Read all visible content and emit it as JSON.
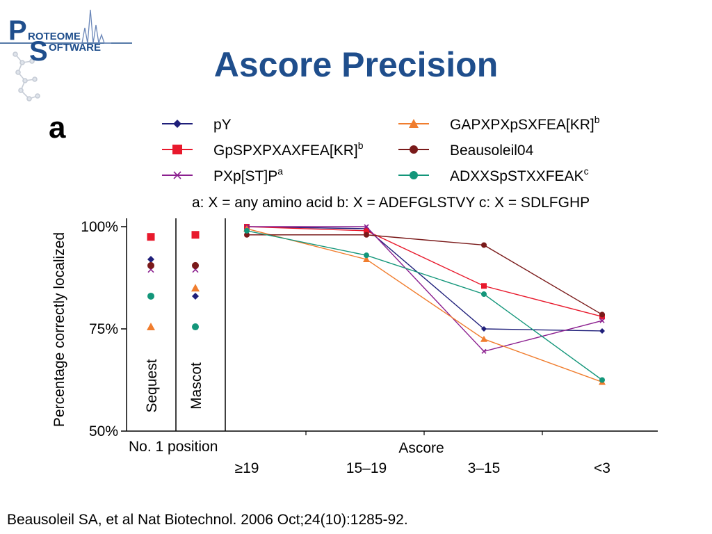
{
  "slide": {
    "title": "Ascore Precision",
    "citation": "Beausoleil SA, et al Nat Biotechnol. 2006 Oct;24(10):1285-92."
  },
  "logo": {
    "line1_initial": "P",
    "line1_rest": "ROTEOME",
    "line2_initial": "S",
    "line2_rest": "OFTWARE",
    "color": "#1f4e8c"
  },
  "chart_data": {
    "type": "line",
    "panel_label": "a",
    "ylabel": "Percentage correctly localized",
    "xlabel": "Ascore",
    "left_section_label": "No. 1 position",
    "yticks": [
      "100%",
      "75%",
      "50%"
    ],
    "ylim": [
      50,
      100
    ],
    "categories": [
      "≥19",
      "15–19",
      "3–15",
      "<3"
    ],
    "engines": [
      "Sequest",
      "Mascot"
    ],
    "footnote": "a: X = any amino acid b: X = ADEFGLSTVY c: X = SDLFGHP",
    "series": [
      {
        "name": "pY",
        "sup": "",
        "color": "#1f1f7a",
        "marker": "diamond",
        "engines": [
          92,
          83
        ],
        "values": [
          100,
          99.5,
          75,
          74.5
        ]
      },
      {
        "name": "GpSPXPXAXFEA[KR]",
        "sup": "b",
        "color": "#e8192c",
        "marker": "square",
        "engines": [
          97.5,
          98
        ],
        "values": [
          100,
          99,
          85.5,
          78
        ]
      },
      {
        "name": "PXp[ST]P",
        "sup": "a",
        "color": "#8b1f8f",
        "marker": "x",
        "engines": [
          89.5,
          89.5
        ],
        "values": [
          100,
          100,
          69.5,
          77
        ]
      },
      {
        "name": "GAPXPXpSXFEA[KR]",
        "sup": "b",
        "color": "#f07d2e",
        "marker": "triangle",
        "engines": [
          75.5,
          85
        ],
        "values": [
          99.5,
          92,
          72.5,
          62
        ]
      },
      {
        "name": "Beausoleil04",
        "sup": "",
        "color": "#7a1a1a",
        "marker": "circle",
        "engines": [
          90.5,
          90.5
        ],
        "values": [
          98,
          98,
          95.5,
          78.5
        ]
      },
      {
        "name": "ADXXSpSTXXFEAK",
        "sup": "c",
        "color": "#13967a",
        "marker": "circle",
        "engines": [
          83,
          75.5
        ],
        "values": [
          99,
          93,
          83.5,
          62.5
        ]
      }
    ]
  }
}
